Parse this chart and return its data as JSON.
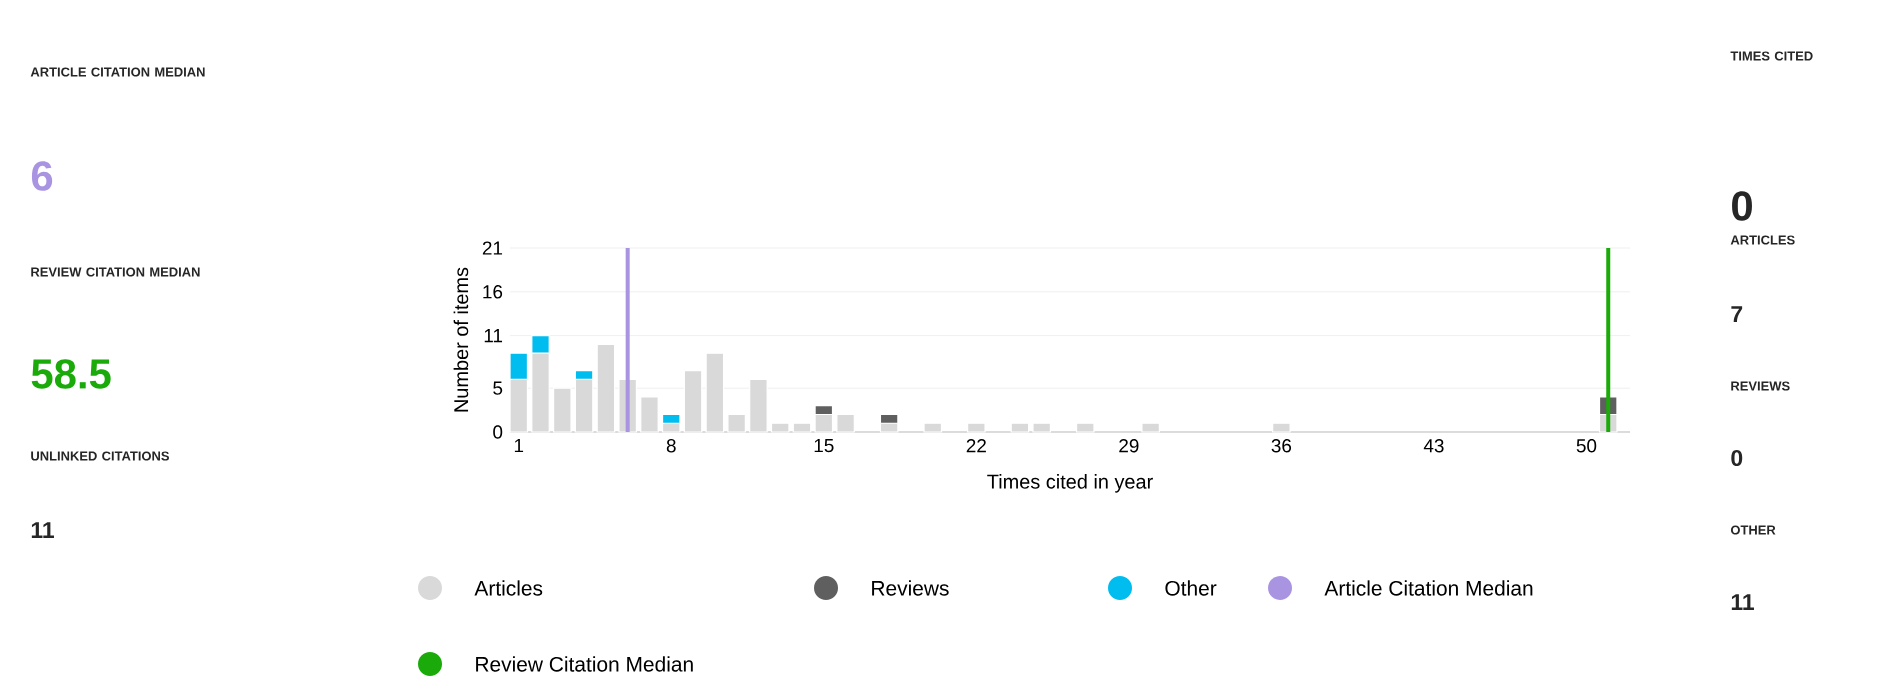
{
  "chart_data": {
    "type": "bar",
    "stacked": true,
    "xlabel": "Times cited in year",
    "ylabel": "Number of items",
    "x": [
      1,
      2,
      3,
      4,
      5,
      6,
      7,
      8,
      9,
      10,
      11,
      12,
      13,
      14,
      15,
      16,
      18,
      20,
      22,
      24,
      25,
      27,
      30,
      36,
      51
    ],
    "series": [
      {
        "name": "Articles",
        "color": "#d9d9d9",
        "values": [
          6,
          9,
          5,
          6,
          10,
          6,
          4,
          1,
          7,
          9,
          2,
          6,
          1,
          1,
          2,
          2,
          1,
          1,
          1,
          1,
          1,
          1,
          1,
          1,
          2
        ]
      },
      {
        "name": "Reviews",
        "color": "#5f5f5f",
        "values": [
          null,
          null,
          null,
          null,
          null,
          null,
          null,
          null,
          null,
          null,
          null,
          null,
          null,
          null,
          1,
          null,
          1,
          null,
          null,
          null,
          null,
          null,
          null,
          null,
          2
        ]
      },
      {
        "name": "Other",
        "color": "#00bdf0",
        "values": [
          3,
          2,
          null,
          1,
          null,
          null,
          null,
          1,
          null,
          null,
          null,
          null,
          null,
          null,
          null,
          null,
          null,
          null,
          null,
          null,
          null,
          null,
          null,
          null,
          null
        ]
      }
    ],
    "ref_lines": [
      {
        "axis": "x",
        "value": 6,
        "label": "Article Citation Median",
        "color": "#a994e2"
      },
      {
        "axis": "x",
        "value": 51,
        "label": "Review Citation Median",
        "color": "#1aaa0a"
      }
    ],
    "xlim": [
      0.6,
      52
    ],
    "xticks": [
      1,
      8,
      15,
      22,
      29,
      36,
      43,
      50
    ],
    "ylim": [
      0,
      21
    ],
    "yticks": [
      0,
      5,
      11,
      16,
      21
    ],
    "grid": "y",
    "legend": "bottom",
    "annotations": [
      "ARTICLE CITATION MEDIAN",
      "6",
      "REVIEW CITATION MEDIAN",
      "58.5",
      "UNLINKED CITATIONS",
      "11",
      "TIMES CITED",
      "0",
      "ARTICLES",
      "7",
      "REVIEWS",
      "0",
      "OTHER",
      "11"
    ]
  }
}
